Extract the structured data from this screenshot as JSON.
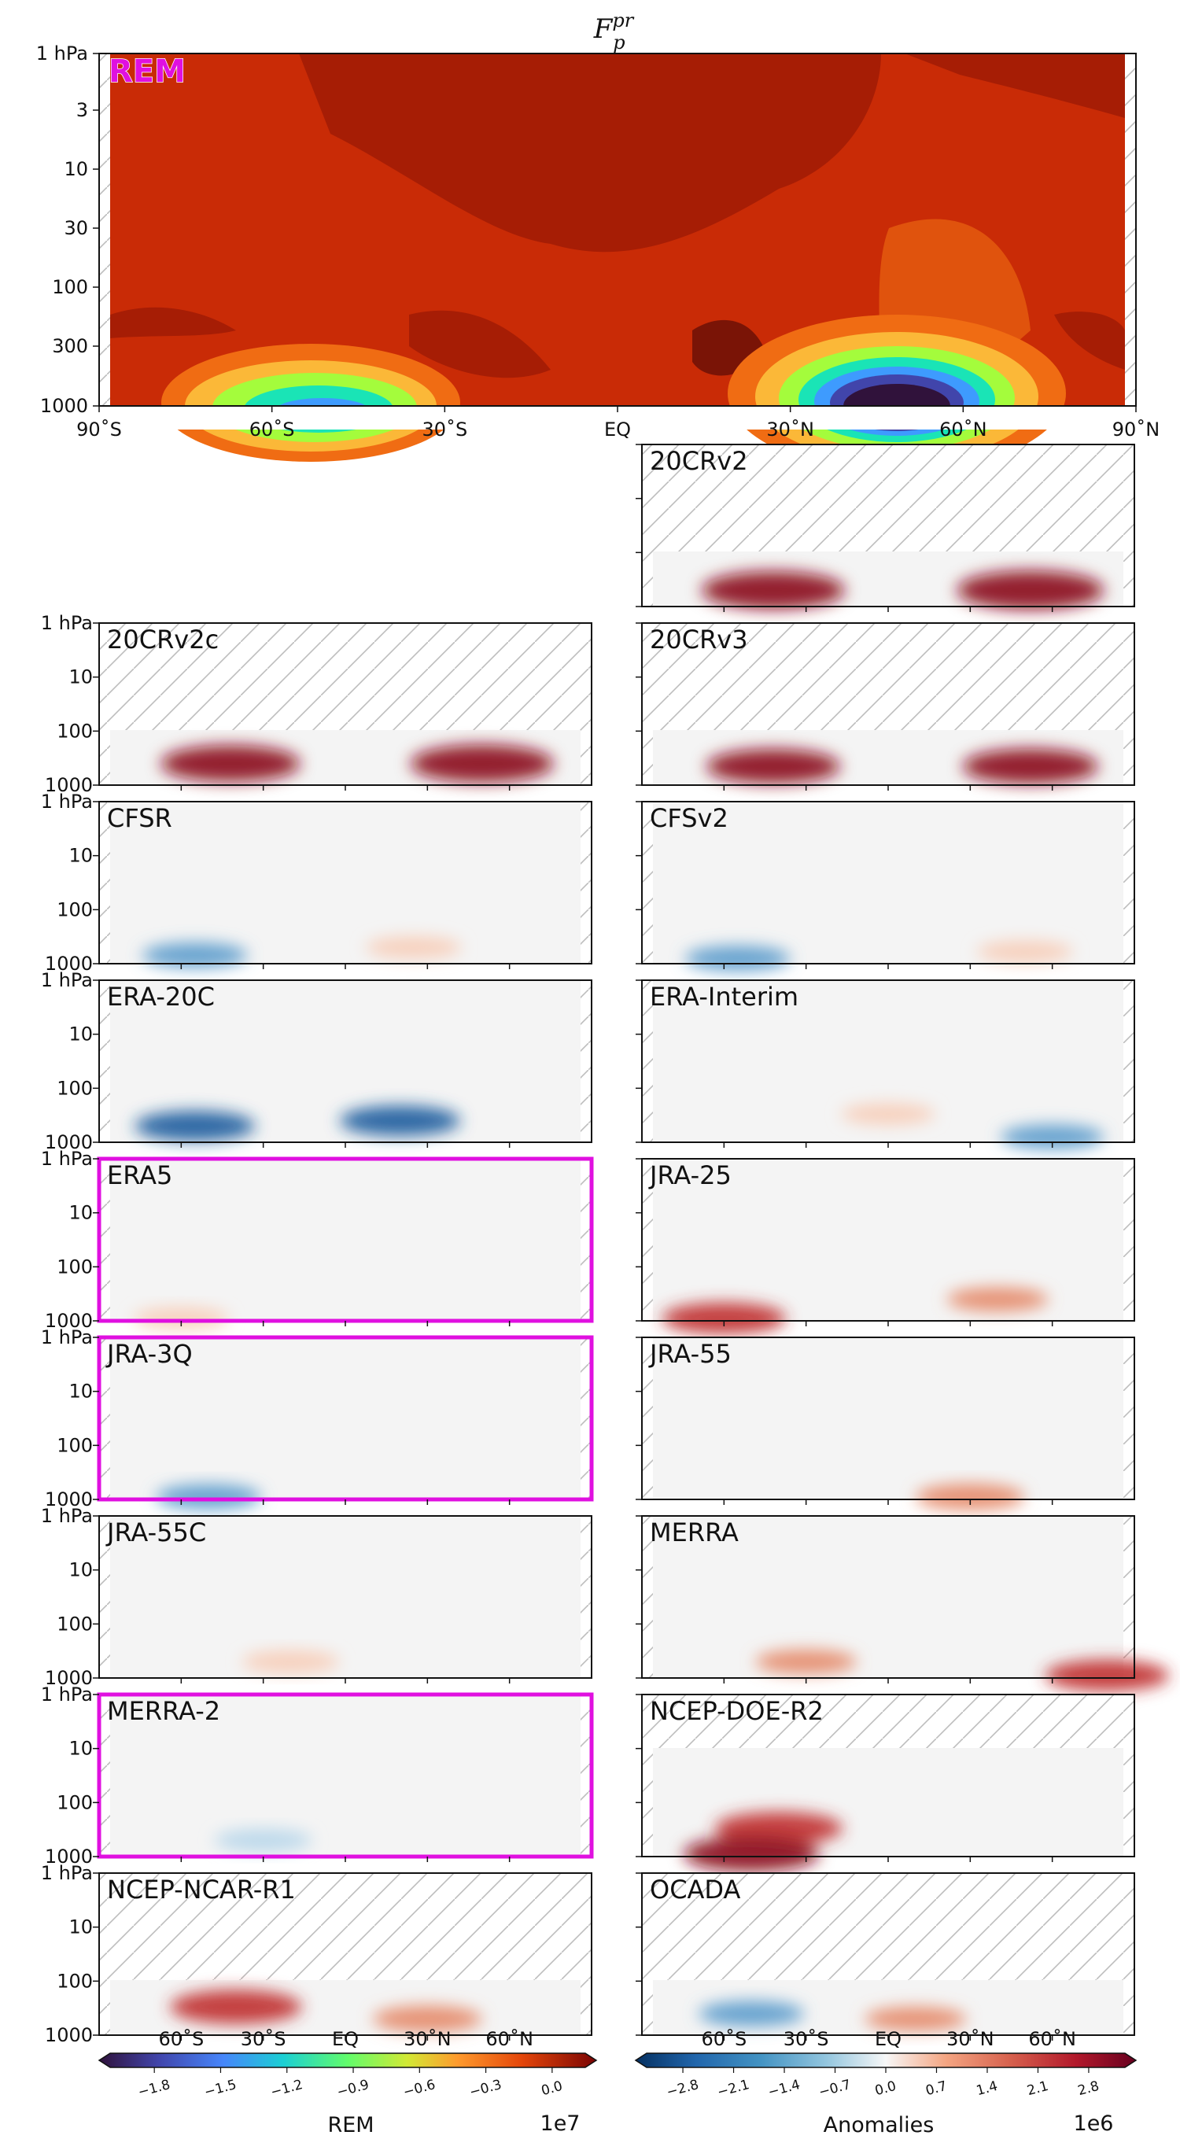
{
  "figure": {
    "title": "F",
    "title_sub": "p",
    "title_sup": "pr",
    "highlight_color": "#e010e0"
  },
  "chart_data": [
    {
      "type": "heatmap",
      "panel": "REM",
      "label": "REM",
      "x_ticks": [
        "90˚S",
        "60˚S",
        "30˚S",
        "EQ",
        "30˚N",
        "60˚N",
        "90˚N"
      ],
      "y_ticks": [
        "1 hPa",
        "3",
        "10",
        "30",
        "100",
        "300",
        "1000"
      ],
      "y_scale": "log",
      "xlim": [
        -90,
        90
      ],
      "ylim": [
        1000,
        1
      ],
      "colormap": "turbo",
      "colorbar_label": "REM",
      "colorbar_scale": "1e7",
      "colorbar_ticks": [
        "−1.8",
        "−1.5",
        "−1.2",
        "−0.9",
        "−0.6",
        "−0.3",
        "0.0"
      ],
      "features": [
        {
          "name": "southern minimum",
          "lat": -52,
          "p": 900,
          "value": -1.1
        },
        {
          "name": "northern minimum",
          "lat": 50,
          "p": 750,
          "value": -1.9
        }
      ]
    },
    {
      "type": "heatmap",
      "panel": "anomaly",
      "label": "20CRv2",
      "highlighted": false,
      "features": [
        {
          "lat": -42,
          "p": 500,
          "value": 3.0
        },
        {
          "lat": 52,
          "p": 500,
          "value": 3.2
        }
      ]
    },
    {
      "type": "heatmap",
      "panel": "anomaly",
      "label": "20CRv2c",
      "highlighted": false,
      "features": [
        {
          "lat": -42,
          "p": 400,
          "value": 2.8
        },
        {
          "lat": 50,
          "p": 400,
          "value": 3.0
        }
      ]
    },
    {
      "type": "heatmap",
      "panel": "anomaly",
      "label": "20CRv3",
      "highlighted": false,
      "features": [
        {
          "lat": -42,
          "p": 450,
          "value": 2.5
        },
        {
          "lat": 52,
          "p": 450,
          "value": 2.6
        }
      ]
    },
    {
      "type": "heatmap",
      "panel": "anomaly",
      "label": "CFSR",
      "highlighted": false,
      "features": [
        {
          "lat": -55,
          "p": 700,
          "value": -1.0
        },
        {
          "lat": 25,
          "p": 500,
          "value": 0.5
        }
      ]
    },
    {
      "type": "heatmap",
      "panel": "anomaly",
      "label": "CFSv2",
      "highlighted": false,
      "features": [
        {
          "lat": -55,
          "p": 800,
          "value": -1.0
        },
        {
          "lat": 50,
          "p": 600,
          "value": 0.5
        }
      ]
    },
    {
      "type": "heatmap",
      "panel": "anomaly",
      "label": "ERA-20C",
      "highlighted": false,
      "features": [
        {
          "lat": -55,
          "p": 500,
          "value": -1.8
        },
        {
          "lat": 20,
          "p": 400,
          "value": -1.8
        }
      ]
    },
    {
      "type": "heatmap",
      "panel": "anomaly",
      "label": "ERA-Interim",
      "highlighted": false,
      "features": [
        {
          "lat": 60,
          "p": 800,
          "value": -0.9
        },
        {
          "lat": 0,
          "p": 300,
          "value": 0.4
        }
      ]
    },
    {
      "type": "heatmap",
      "panel": "anomaly",
      "label": "ERA5",
      "highlighted": true,
      "features": [
        {
          "lat": -60,
          "p": 900,
          "value": 0.5
        }
      ]
    },
    {
      "type": "heatmap",
      "panel": "anomaly",
      "label": "JRA-25",
      "highlighted": false,
      "features": [
        {
          "lat": -60,
          "p": 900,
          "value": 2.0
        },
        {
          "lat": 40,
          "p": 400,
          "value": 0.8
        }
      ]
    },
    {
      "type": "heatmap",
      "panel": "anomaly",
      "label": "JRA-3Q",
      "highlighted": true,
      "features": [
        {
          "lat": -50,
          "p": 900,
          "value": -1.0
        }
      ]
    },
    {
      "type": "heatmap",
      "panel": "anomaly",
      "label": "JRA-55",
      "highlighted": false,
      "features": [
        {
          "lat": 30,
          "p": 900,
          "value": 1.2
        }
      ]
    },
    {
      "type": "heatmap",
      "panel": "anomaly",
      "label": "JRA-55C",
      "highlighted": false,
      "features": [
        {
          "lat": -20,
          "p": 500,
          "value": 0.6
        }
      ]
    },
    {
      "type": "heatmap",
      "panel": "anomaly",
      "label": "MERRA",
      "highlighted": false,
      "features": [
        {
          "lat": 80,
          "p": 900,
          "value": 2.0
        },
        {
          "lat": -30,
          "p": 500,
          "value": 0.8
        }
      ]
    },
    {
      "type": "heatmap",
      "panel": "anomaly",
      "label": "MERRA-2",
      "highlighted": true,
      "features": [
        {
          "lat": -30,
          "p": 500,
          "value": -0.6
        }
      ]
    },
    {
      "type": "heatmap",
      "panel": "anomaly",
      "label": "NCEP-DOE-R2",
      "highlighted": false,
      "features": [
        {
          "lat": -40,
          "p": 300,
          "value": 2.2
        },
        {
          "lat": -50,
          "p": 900,
          "value": 2.6
        }
      ]
    },
    {
      "type": "heatmap",
      "panel": "anomaly",
      "label": "NCEP-NCAR-R1",
      "highlighted": false,
      "features": [
        {
          "lat": -40,
          "p": 300,
          "value": 2.4
        },
        {
          "lat": 30,
          "p": 500,
          "value": 1.2
        }
      ]
    },
    {
      "type": "heatmap",
      "panel": "anomaly",
      "label": "OCADA",
      "highlighted": false,
      "features": [
        {
          "lat": -50,
          "p": 400,
          "value": -1.0
        },
        {
          "lat": 10,
          "p": 500,
          "value": 0.8
        }
      ]
    },
    {
      "type": "colorbar",
      "panel": "anomaly-colorbar",
      "label": "Anomalies",
      "scale": "1e6",
      "ticks": [
        "−2.8",
        "−2.1",
        "−1.4",
        "−0.7",
        "0.0",
        "0.7",
        "1.4",
        "2.1",
        "2.8"
      ],
      "colormap": "RdBu_r",
      "small_panel_x_ticks": [
        "60˚S",
        "30˚S",
        "EQ",
        "30˚N",
        "60˚N"
      ],
      "small_panel_y_ticks": [
        "1 hPa",
        "10",
        "100",
        "1000"
      ]
    }
  ]
}
